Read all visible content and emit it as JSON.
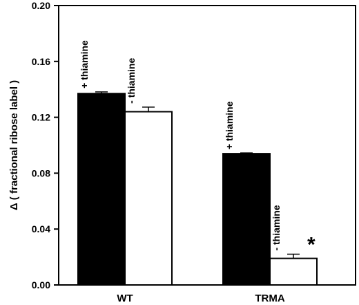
{
  "chart_data": {
    "type": "bar",
    "ylabel": "Δ ( fractional ribose label )",
    "ylim": [
      0.0,
      0.2
    ],
    "yticks": [
      "0.00",
      "0.04",
      "0.08",
      "0.12",
      "0.16",
      "0.20"
    ],
    "grid": false,
    "categories": [
      "WT",
      "TRMA"
    ],
    "series": [
      {
        "fill": "#000000",
        "values": [
          0.137,
          0.094
        ],
        "errors": [
          0.0012,
          0.0005
        ]
      },
      {
        "fill": "#ffffff",
        "values": [
          0.124,
          0.019
        ],
        "errors": [
          0.0033,
          0.003
        ]
      }
    ],
    "bar_labels": [
      [
        "+ thiamine",
        "- thiamine"
      ],
      [
        "+ thiamine",
        "- thiamine"
      ]
    ],
    "annotations": [
      {
        "text": "*",
        "category": "TRMA",
        "series": 1
      }
    ]
  }
}
